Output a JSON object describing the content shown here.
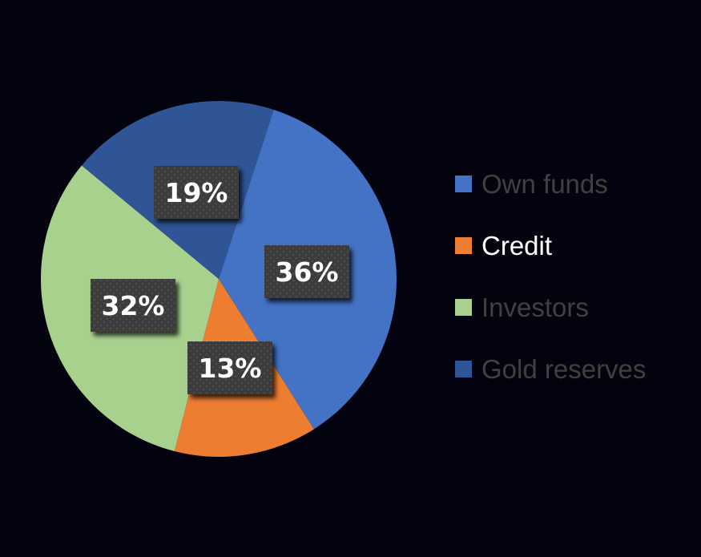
{
  "chart_data": {
    "type": "pie",
    "categories": [
      "Own funds",
      "Credit",
      "Investors",
      "Gold reserves"
    ],
    "values": [
      36,
      13,
      32,
      19
    ],
    "data_labels": [
      "36%",
      "13%",
      "32%",
      "19%"
    ],
    "colors": [
      "#4472c4",
      "#ed7d31",
      "#a9d18e",
      "#2f5597"
    ],
    "legend_placement": "right",
    "legend_text_colors": [
      "#404040",
      "#ffffff",
      "#404040",
      "#404040"
    ],
    "start_angle_deg": 18,
    "direction": "clockwise"
  },
  "legend": {
    "items": [
      {
        "label": "Own funds",
        "color": "#4472c4",
        "text_color": "#404040"
      },
      {
        "label": "Credit",
        "color": "#ed7d31",
        "text_color": "#ffffff"
      },
      {
        "label": "Investors",
        "color": "#a9d18e",
        "text_color": "#404040"
      },
      {
        "label": "Gold reserves",
        "color": "#2f5597",
        "text_color": "#404040"
      }
    ]
  },
  "colors": {
    "background": "#03030f",
    "label_box": "#3a3a3a"
  }
}
